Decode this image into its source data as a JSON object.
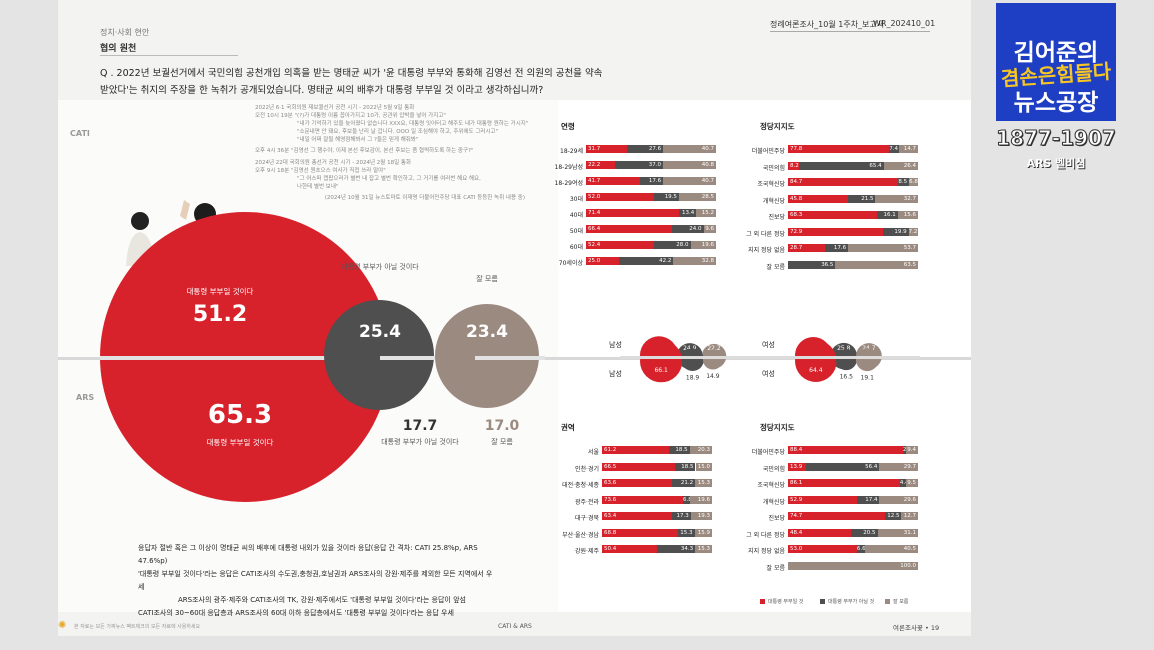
{
  "header": {
    "section": "정치·사회 현안",
    "subtitle": "협의 원천",
    "report": "정례여론조사_10월 1주차_보고서",
    "code": "WR_202410_01"
  },
  "question": {
    "text": "Q . 2022년 보궐선거에서 국민의힘 공천개입 의혹을 받는 명태균 씨가 '윤 대통령 부부와 통화해 김영선 전 의원의 공천을 약속 받았다'는 취지의 주장을 한 녹취가 공개되었습니다. 명태균 씨의 배후가 대통령 부부일 것 이라고 생각하십니까?"
  },
  "labels": {
    "cati": "CATI",
    "ars": "ARS"
  },
  "timeline": {
    "lines": [
      "2022년 6·1 국회의원 재보궐선거 공천 시기 - 2022년 5월 9일 통화",
      "오전 10시 19분 \"(?)가 대통령 이름 꼽아가지고 10가, 공관위 압박을 넣어 가지고\"",
      "\"내가 기억하기 있을 늦어졌다 없습니다 XXX요, 대통령 잇어터고 해주도 내가 대통령 원하는 거시지\"",
      "\"소문내면 안 돼요, 후보들 난리 날 겁니다. OOO 일 조심해야 하고, 주위에도 그러시고\"",
      "\"내일 어쩌 잘될 해영점해봐서 그 ?들은 믿게 해줘봐\"",
      "오후 4시 36분 \"김영선 그 행수야, 이제 본선 후보감이, 본선 후보는 좀 협력하도록 하는 중구?\"",
      "2024년 22대 국회의원 총선거 공천 시기 - 2024년 2월 18일 통화",
      "오후 9시 18분 \"김영선 원초으스 여사가 직접 쓰라 말야\"",
      "\"그 어스떠 캡팝으러가 별번 내 잡고 별번 확인하고, 그 거기를 여러번 해요 해요,",
      "나한테 별번 보내\"",
      "(2024년 10월 31일 뉴스토마토 이재명 더불어민주당 대표 CATI 등등한 녹취 내용 중)"
    ]
  },
  "cati_results": {
    "yes_label": "대통령 부부일 것이다",
    "yes": "51.2",
    "no_label": "대통령 부부가 아닐 것이다",
    "no": "25.4",
    "dk_label": "잘 모름",
    "dk": "23.4"
  },
  "ars_results": {
    "yes_label": "대통령 부부일 것이다",
    "yes": "65.3",
    "no_label": "대통령 부부가 아닐 것이다",
    "no": "17.7",
    "dk_label": "잘 모름",
    "dk": "17.0"
  },
  "notes": [
    "응답자 절반 혹은 그 이상이 명태균 씨의 배후에 대통령 내외가 있을 것이라 응답(응답 간 격차: CATI 25.8%p, ARS 47.6%p)",
    "'대통령 부부일 것이다'라는 응답은 CATI조사의 수도권,충청권,호남권과 ARS조사의 강원·제주를 제외한 모든 지역에서 우세",
    "ARS조사의 광주·제주와 CATI조사의 TK, 강원·제주에서도 '대통령 부부일 것이다'라는 응답이 앞섬",
    "CATI조사의 30~60대 응답층과 ARS조사의 60대 이하 응답층에서도 '대통령 부부일 것이다'라는 응답 우세"
  ],
  "footer": {
    "left": "본 자료는 모든 가짜뉴스 팩트체크의 모든 자료에 사용하세요",
    "center": "CATI & ARS",
    "right": "여론조사꽃 • 19"
  },
  "colors": {
    "yes": "#d7222c",
    "no": "#4f4f4f",
    "dk": "#9b8a80"
  },
  "chart_data": [
    {
      "type": "bar",
      "title": "연령",
      "categories": [
        "18-29세",
        "18-29남성",
        "18-29여성",
        "30대",
        "40대",
        "50대",
        "60대",
        "70세이상"
      ],
      "series": [
        {
          "name": "대통령 부부일 것",
          "values": [
            31.7,
            22.2,
            41.7,
            52.0,
            71.4,
            66.4,
            52.4,
            25.0
          ]
        },
        {
          "name": "대통령 부부가 아닐 것",
          "values": [
            27.6,
            37.0,
            17.6,
            19.5,
            13.4,
            24.0,
            28.0,
            42.2
          ]
        },
        {
          "name": "잘 모름",
          "values": [
            40.7,
            40.8,
            40.7,
            28.5,
            15.2,
            9.6,
            19.6,
            32.8
          ]
        }
      ]
    },
    {
      "type": "bar",
      "title": "정당지지도",
      "categories": [
        "더불어민주당",
        "국민의힘",
        "조국혁신당",
        "개혁신당",
        "진보당",
        "그 외 다른 정당",
        "지지 정당 없음",
        "잘 모름"
      ],
      "series": [
        {
          "name": "대통령 부부일 것",
          "values": [
            77.8,
            8.2,
            84.7,
            45.8,
            68.3,
            72.9,
            28.7,
            0
          ]
        },
        {
          "name": "대통령 부부가 아닐 것",
          "values": [
            7.4,
            65.4,
            8.5,
            21.5,
            16.1,
            19.9,
            17.6,
            36.5
          ]
        },
        {
          "name": "잘 모름",
          "values": [
            14.7,
            26.4,
            6.8,
            32.7,
            15.6,
            7.2,
            53.7,
            63.5
          ]
        }
      ]
    },
    {
      "type": "bar",
      "title": "권역",
      "categories": [
        "서울",
        "인천·경기",
        "대전·충청·세종",
        "광주·전라",
        "대구·경북",
        "부산·울산·경남",
        "강원·제주"
      ],
      "series": [
        {
          "name": "대통령 부부일 것",
          "values": [
            61.2,
            66.5,
            63.6,
            73.6,
            63.4,
            68.8,
            50.4
          ]
        },
        {
          "name": "대통령 부부가 아닐 것",
          "values": [
            18.5,
            18.5,
            21.2,
            6.8,
            17.3,
            15.3,
            34.3
          ]
        },
        {
          "name": "잘 모름",
          "values": [
            20.3,
            15.0,
            15.3,
            19.6,
            19.3,
            15.9,
            15.3
          ]
        }
      ]
    },
    {
      "type": "bar",
      "title": "정당지지도",
      "categories": [
        "더불어민주당",
        "국민의힘",
        "조국혁신당",
        "개혁신당",
        "진보당",
        "그 외 다른 정당",
        "지지 정당 없음",
        "잘 모름"
      ],
      "series": [
        {
          "name": "대통령 부부일 것",
          "values": [
            88.4,
            13.9,
            86.1,
            52.9,
            74.7,
            48.4,
            53.0,
            0
          ]
        },
        {
          "name": "대통령 부부가 아닐 것",
          "values": [
            2.2,
            56.4,
            4.4,
            17.4,
            12.5,
            20.5,
            6.6,
            0
          ]
        },
        {
          "name": "잘 모름",
          "values": [
            9.4,
            29.7,
            9.5,
            29.6,
            12.7,
            31.1,
            40.5,
            100.0
          ]
        }
      ]
    },
    {
      "type": "bubble",
      "title": "성별",
      "categories": [
        "남성 CATI",
        "남성 ARS",
        "여성 CATI",
        "여성 ARS"
      ],
      "series": [
        {
          "name": "대통령 부부일 것",
          "values": [
            52.9,
            66.1,
            49.5,
            64.4
          ]
        },
        {
          "name": "대통령 부부가 아닐 것",
          "values": [
            24.9,
            18.9,
            25.8,
            16.5
          ]
        },
        {
          "name": "잘 모름",
          "values": [
            22.2,
            14.9,
            24.7,
            19.1
          ]
        }
      ]
    }
  ],
  "legend": [
    "대통령 부부일 것",
    "대통령 부부가 아닐 것",
    "잘 모름"
  ],
  "gender": {
    "male": "남성",
    "female": "여성"
  },
  "logo": {
    "line1": "김어준의",
    "line2": "겸손은힘들다",
    "line3": "뉴스공장",
    "years": "1877-1907",
    "ars": "ARS 벨비심"
  }
}
